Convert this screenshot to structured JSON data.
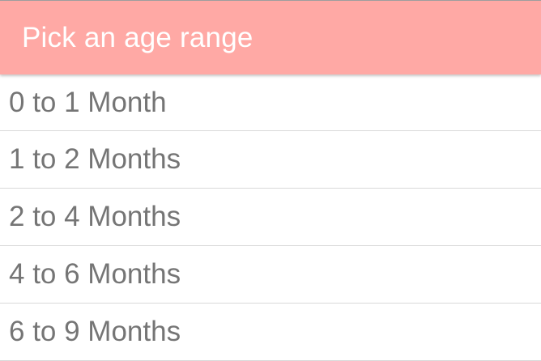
{
  "header": {
    "title": "Pick an age range",
    "background_color": "#ffa9a5"
  },
  "age_ranges": [
    {
      "label": "0 to 1 Month"
    },
    {
      "label": "1 to 2 Months"
    },
    {
      "label": "2 to 4 Months"
    },
    {
      "label": "4 to 6 Months"
    },
    {
      "label": "6 to 9 Months"
    }
  ]
}
